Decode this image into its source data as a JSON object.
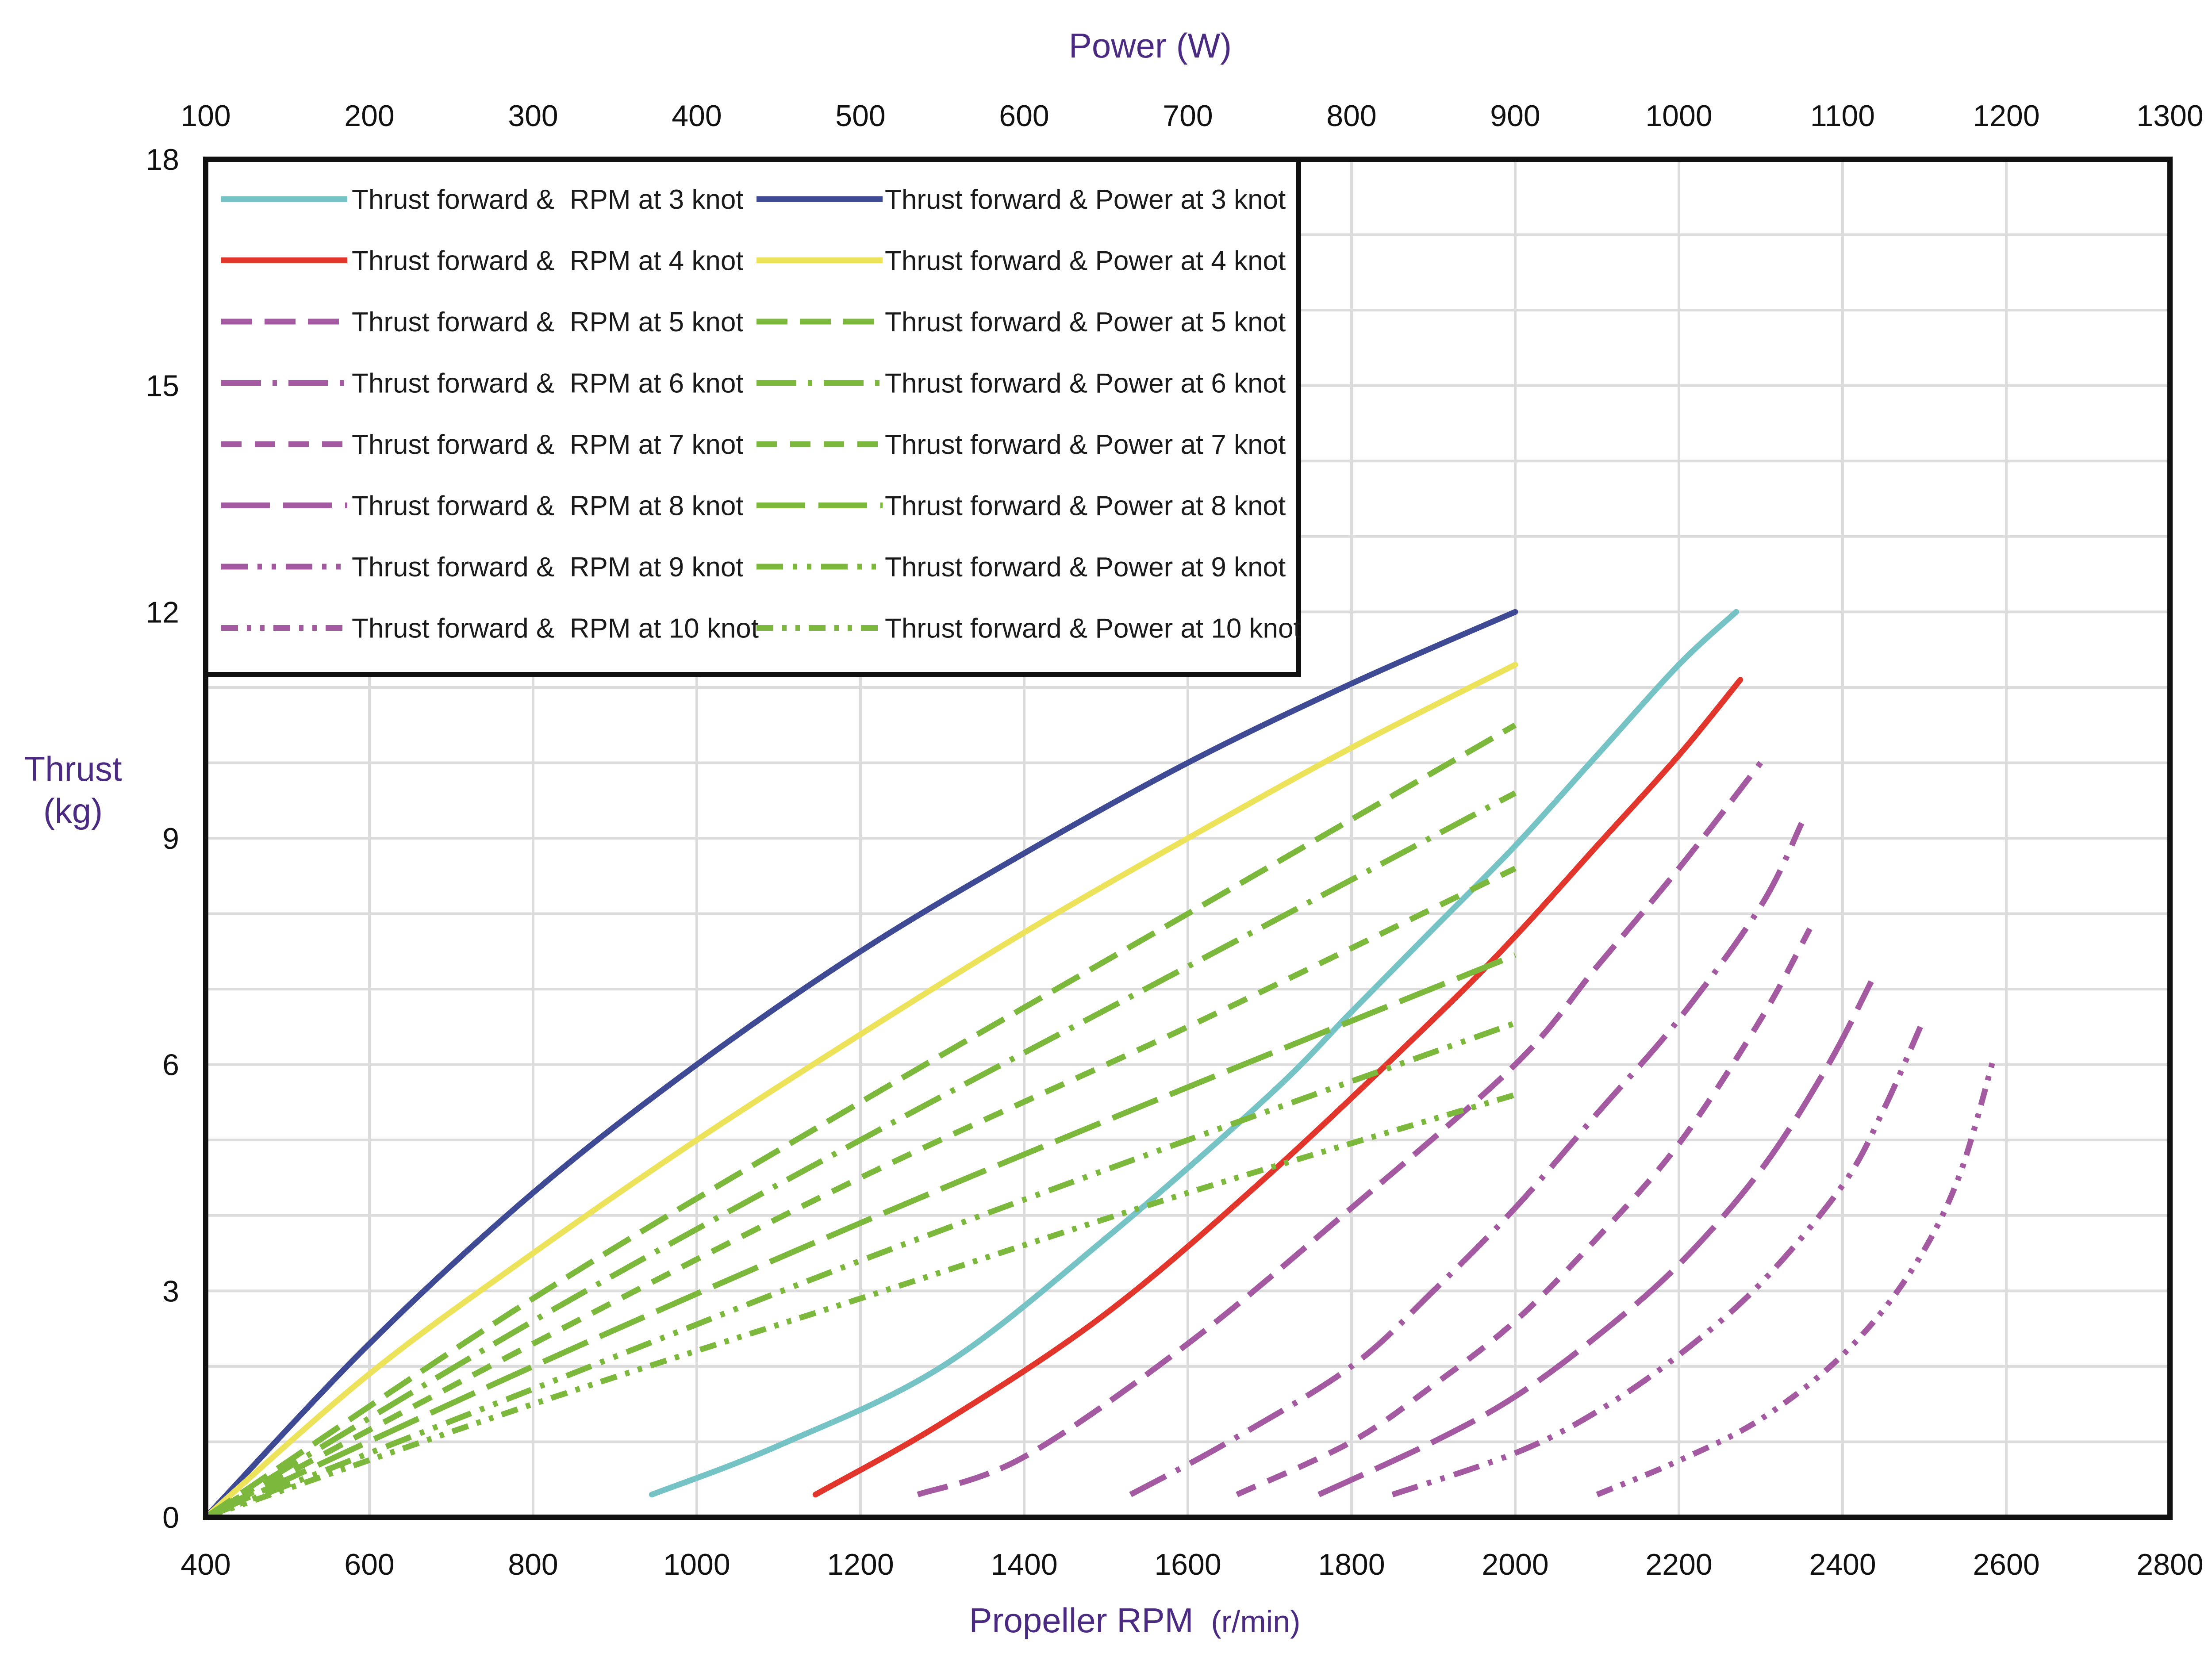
{
  "chart_data": {
    "type": "line",
    "axes": {
      "x_bottom": {
        "label": "Propeller RPM",
        "unit": "(r/min)",
        "range": [
          400,
          2800
        ],
        "ticks": [
          400,
          600,
          800,
          1000,
          1200,
          1400,
          1600,
          1800,
          2000,
          2200,
          2400,
          2600,
          2800
        ]
      },
      "x_top": {
        "label": "Power (W)",
        "range": [
          100,
          1300
        ],
        "ticks": [
          100,
          200,
          300,
          400,
          500,
          600,
          700,
          800,
          900,
          1000,
          1100,
          1200,
          1300
        ]
      },
      "y": {
        "label_line1": "Thrust",
        "label_line2": "(kg)",
        "range": [
          0,
          18
        ],
        "ticks": [
          0,
          3,
          6,
          9,
          12,
          15,
          18
        ]
      }
    },
    "grid": true,
    "legend_position": "top-left",
    "colors": {
      "rpm_3": "#76c3c6",
      "rpm_4": "#e2362c",
      "rpm_other": "#a35aa1",
      "power_3": "#3f4a94",
      "power_4": "#ece35a",
      "power_other": "#7bb83c"
    },
    "series": [
      {
        "name": "Thrust forward &  RPM at 3 knot",
        "axis": "rpm",
        "color": "#76c3c6",
        "dash": "solid",
        "x": [
          945,
          1100,
          1300,
          1500,
          1700,
          1800,
          1900,
          2000,
          2100,
          2200,
          2270
        ],
        "y": [
          0.3,
          0.95,
          2.0,
          3.7,
          5.6,
          6.7,
          7.8,
          8.9,
          10.1,
          11.3,
          12.0
        ]
      },
      {
        "name": "Thrust forward &  RPM at 4 knot",
        "axis": "rpm",
        "color": "#e2362c",
        "dash": "solid",
        "x": [
          1145,
          1300,
          1500,
          1700,
          1900,
          2000,
          2100,
          2200,
          2275
        ],
        "y": [
          0.3,
          1.25,
          2.7,
          4.55,
          6.6,
          7.7,
          8.9,
          10.1,
          11.1
        ]
      },
      {
        "name": "Thrust forward &  RPM at 5 knot",
        "axis": "rpm",
        "color": "#a35aa1",
        "dash": "longdash",
        "x": [
          1270,
          1400,
          1600,
          1800,
          2000,
          2100,
          2200,
          2300
        ],
        "y": [
          0.3,
          0.8,
          2.3,
          4.1,
          6.0,
          7.3,
          8.6,
          10.0
        ]
      },
      {
        "name": "Thrust forward &  RPM at 6 knot",
        "axis": "rpm",
        "color": "#a35aa1",
        "dash": "longdot",
        "x": [
          1530,
          1650,
          1800,
          1900,
          2000,
          2100,
          2200,
          2300,
          2350
        ],
        "y": [
          0.3,
          1.0,
          2.0,
          3.0,
          4.1,
          5.35,
          6.6,
          8.1,
          9.2
        ]
      },
      {
        "name": "Thrust forward &  RPM at 7 knot",
        "axis": "rpm",
        "color": "#a35aa1",
        "dash": "dash",
        "x": [
          1660,
          1800,
          1900,
          2000,
          2100,
          2200,
          2300,
          2360
        ],
        "y": [
          0.3,
          1.0,
          1.75,
          2.6,
          3.7,
          4.95,
          6.6,
          7.8
        ]
      },
      {
        "name": "Thrust forward &  RPM at 8 knot",
        "axis": "rpm",
        "color": "#a35aa1",
        "dash": "longdash2",
        "x": [
          1760,
          1900,
          2000,
          2100,
          2200,
          2300,
          2380,
          2435
        ],
        "y": [
          0.3,
          1.0,
          1.6,
          2.4,
          3.35,
          4.6,
          5.95,
          7.1
        ]
      },
      {
        "name": "Thrust forward &  RPM at 9 knot",
        "axis": "rpm",
        "color": "#a35aa1",
        "dash": "dashdotdot",
        "x": [
          1850,
          2000,
          2100,
          2200,
          2300,
          2400,
          2450,
          2495
        ],
        "y": [
          0.3,
          0.85,
          1.4,
          2.15,
          3.1,
          4.4,
          5.4,
          6.5
        ]
      },
      {
        "name": "Thrust forward &  RPM at 10 knot",
        "axis": "rpm",
        "color": "#a35aa1",
        "dash": "dashdotdot2",
        "x": [
          2100,
          2200,
          2300,
          2400,
          2480,
          2540,
          2585
        ],
        "y": [
          0.3,
          0.75,
          1.3,
          2.15,
          3.2,
          4.45,
          6.1
        ]
      },
      {
        "name": "Thrust forward & Power at 3 knot",
        "axis": "power",
        "color": "#3f4a94",
        "dash": "solid",
        "x": [
          100,
          200,
          300,
          400,
          500,
          600,
          700,
          800,
          900
        ],
        "y": [
          0.0,
          2.3,
          4.3,
          6.0,
          7.5,
          8.8,
          10.0,
          11.05,
          12.0
        ]
      },
      {
        "name": "Thrust forward & Power at 4 knot",
        "axis": "power",
        "color": "#ece35a",
        "dash": "solid",
        "x": [
          100,
          200,
          300,
          400,
          500,
          600,
          700,
          800,
          900
        ],
        "y": [
          0.0,
          1.9,
          3.5,
          5.0,
          6.4,
          7.75,
          9.0,
          10.2,
          11.3
        ]
      },
      {
        "name": "Thrust forward & Power at 5 knot",
        "axis": "power",
        "color": "#7bb83c",
        "dash": "longdash",
        "x": [
          100,
          300,
          500,
          700,
          900
        ],
        "y": [
          0.0,
          2.9,
          5.5,
          8.0,
          10.5
        ]
      },
      {
        "name": "Thrust forward & Power at 6 knot",
        "axis": "power",
        "color": "#7bb83c",
        "dash": "longdot",
        "x": [
          100,
          300,
          500,
          700,
          900
        ],
        "y": [
          0.0,
          2.6,
          5.0,
          7.3,
          9.6
        ]
      },
      {
        "name": "Thrust forward & Power at 7 knot",
        "axis": "power",
        "color": "#7bb83c",
        "dash": "dash",
        "x": [
          100,
          300,
          500,
          700,
          900
        ],
        "y": [
          0.0,
          2.3,
          4.5,
          6.5,
          8.6
        ]
      },
      {
        "name": "Thrust forward & Power at 8 knot",
        "axis": "power",
        "color": "#7bb83c",
        "dash": "longdash2",
        "x": [
          100,
          300,
          500,
          700,
          900
        ],
        "y": [
          0.0,
          2.0,
          3.9,
          5.7,
          7.45
        ]
      },
      {
        "name": "Thrust forward & Power at 9 knot",
        "axis": "power",
        "color": "#7bb83c",
        "dash": "dashdotdot",
        "x": [
          100,
          300,
          500,
          700,
          900
        ],
        "y": [
          0.0,
          1.7,
          3.4,
          5.0,
          6.55
        ]
      },
      {
        "name": "Thrust forward & Power at 10 knot",
        "axis": "power",
        "color": "#7bb83c",
        "dash": "dashdotdot2",
        "x": [
          100,
          300,
          500,
          700,
          900
        ],
        "y": [
          0.0,
          1.5,
          2.9,
          4.3,
          5.6
        ]
      }
    ],
    "legend": {
      "left_column": [
        "Thrust forward &  RPM at 3 knot",
        "Thrust forward &  RPM at 4 knot",
        "Thrust forward &  RPM at 5 knot",
        "Thrust forward &  RPM at 6 knot",
        "Thrust forward &  RPM at 7 knot",
        "Thrust forward &  RPM at 8 knot",
        "Thrust forward &  RPM at 9 knot",
        "Thrust forward &  RPM at 10 knot"
      ],
      "right_column": [
        "Thrust forward & Power at 3 knot",
        "Thrust forward & Power at 4 knot",
        "Thrust forward & Power at 5 knot",
        "Thrust forward & Power at 6 knot",
        "Thrust forward & Power at 7 knot",
        "Thrust forward & Power at 8 knot",
        "Thrust forward & Power at 9 knot",
        "Thrust forward & Power at 10 knot"
      ]
    }
  }
}
